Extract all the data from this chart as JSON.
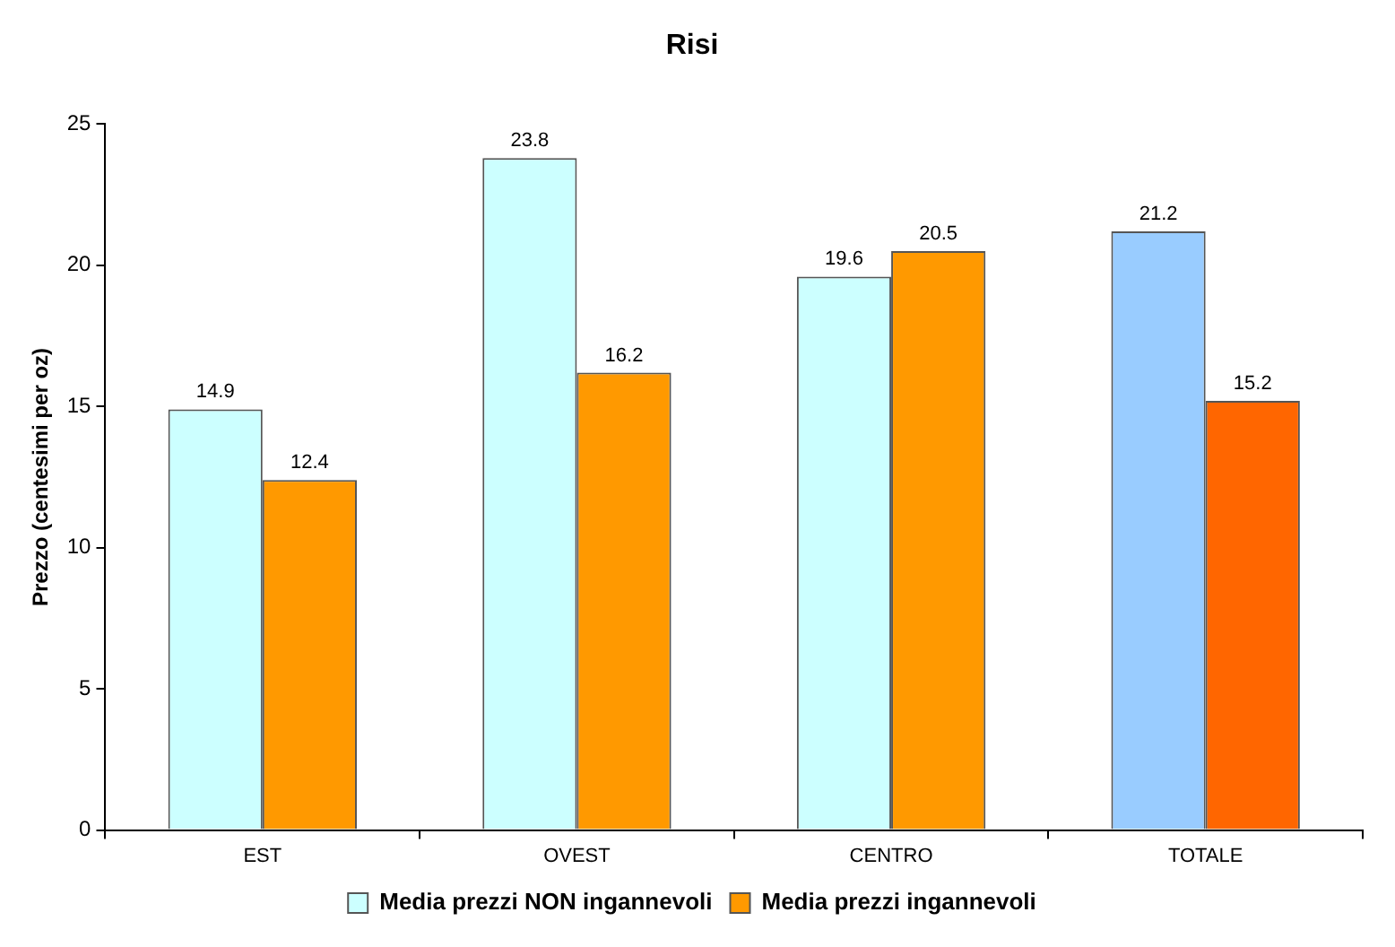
{
  "chart_data": {
    "type": "bar",
    "title": "Risi",
    "ylabel": "Prezzo (centesimi per oz)",
    "categories": [
      "EST",
      "OVEST",
      "CENTRO",
      "TOTALE"
    ],
    "series": [
      {
        "name": "Media prezzi NON ingannevoli",
        "color": "#ccffff",
        "colors": [
          "#ccffff",
          "#ccffff",
          "#ccffff",
          "#99ccff"
        ],
        "values": [
          14.9,
          23.8,
          19.6,
          21.2
        ]
      },
      {
        "name": "Media prezzi ingannevoli",
        "color": "#ff9900",
        "colors": [
          "#ff9900",
          "#ff9900",
          "#ff9900",
          "#ff6600"
        ],
        "values": [
          12.4,
          16.2,
          20.5,
          15.2
        ]
      }
    ],
    "ylim": [
      0,
      25
    ],
    "yticks": [
      0,
      5,
      10,
      15,
      20,
      25
    ],
    "grid": false,
    "legend": "bottom",
    "data_labels": true
  }
}
